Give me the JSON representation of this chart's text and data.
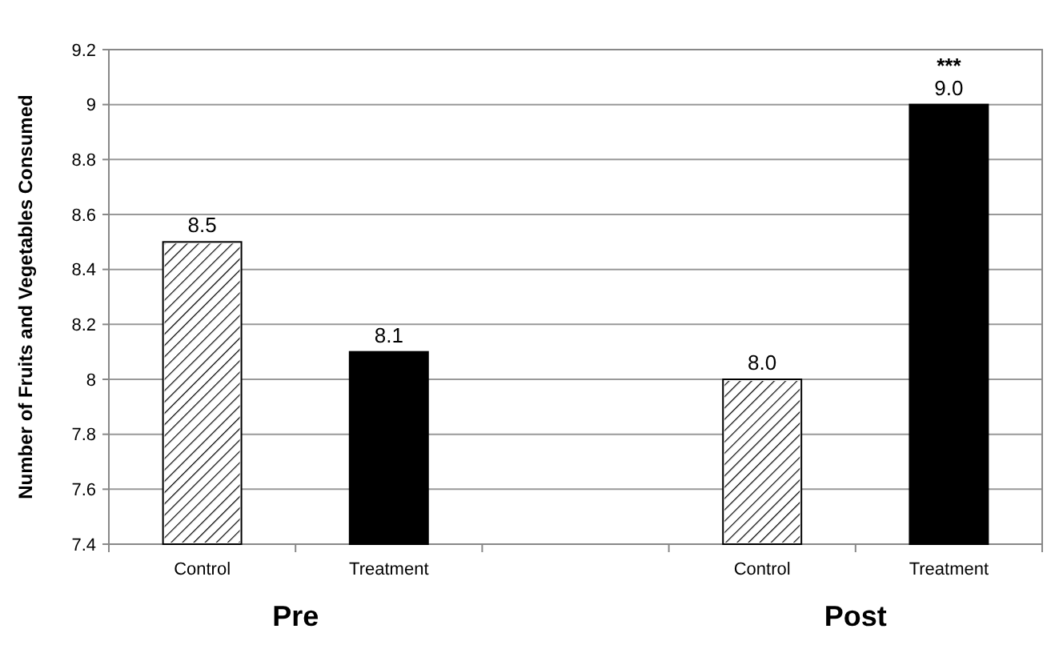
{
  "chart_data": {
    "type": "bar",
    "ylabel": "Number of Fruits and Vegetables Consumed",
    "categories": [
      "Control",
      "Treatment",
      null,
      "Control",
      "Treatment"
    ],
    "values": [
      8.5,
      8.1,
      null,
      8,
      9
    ],
    "colors": [
      "#ffffff",
      "#000000",
      "#ffffff",
      "#ffffff",
      "#000000"
    ],
    "value_labels": [
      "8.5",
      "8.1",
      null,
      "8.0",
      "9.0"
    ],
    "ylim": [
      7.4,
      9.2
    ],
    "yticks": [
      7.4,
      7.6,
      7.8,
      {
        "value": 8,
        "label": "8"
      },
      8.2,
      8.4,
      8.6,
      8.8,
      {
        "value": 9,
        "label": "9"
      },
      9.2
    ],
    "grid": "y",
    "annotations": [
      "Pre",
      "Post",
      "***"
    ]
  }
}
